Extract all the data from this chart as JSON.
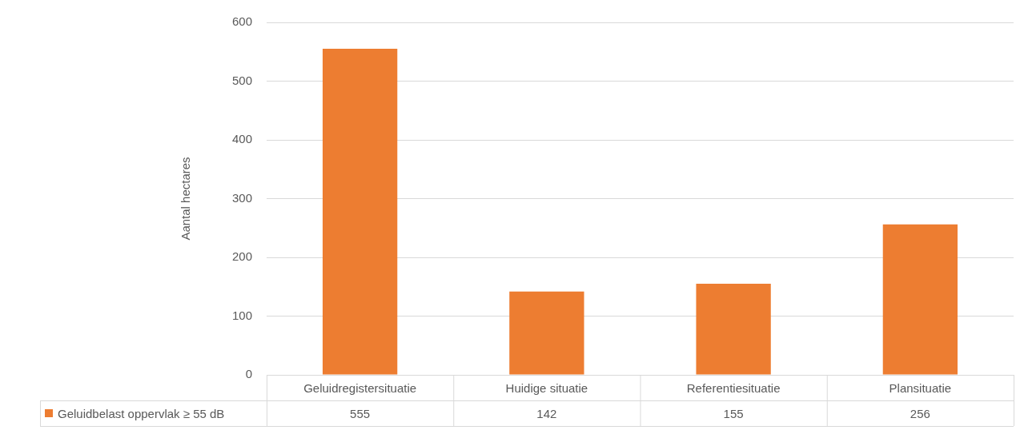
{
  "chart_data": {
    "type": "bar",
    "ylabel": "Aantal hectares",
    "categories": [
      "Geluidregistersituatie",
      "Huidige situatie",
      "Referentiesituatie",
      "Plansituatie"
    ],
    "series": [
      {
        "name": "Geluidbelast oppervlak ≥ 55 dB",
        "color": "#ed7d31",
        "values": [
          555,
          142,
          155,
          256
        ]
      }
    ],
    "ylim": [
      0,
      600
    ],
    "yticks": [
      0,
      100,
      200,
      300,
      400,
      500,
      600
    ],
    "grid": "y",
    "legend": "bottom left",
    "data_labels": true
  }
}
